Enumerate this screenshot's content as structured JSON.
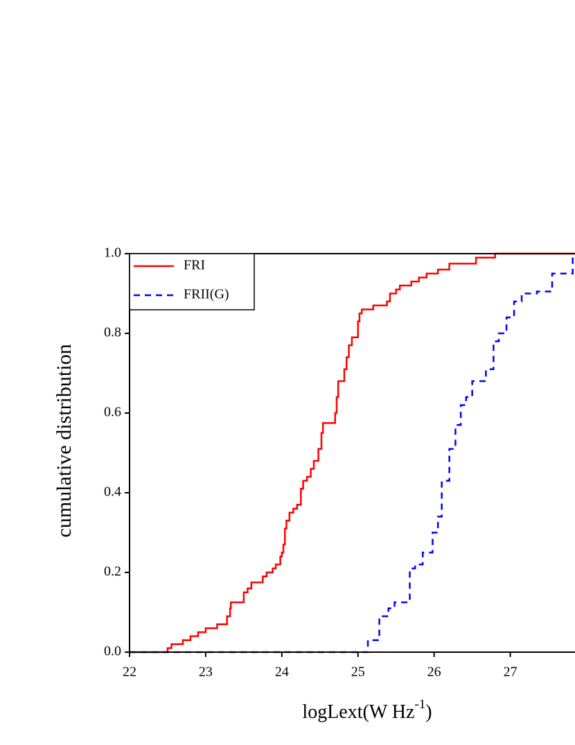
{
  "chart_data": {
    "type": "step",
    "ylabel": "cumulative distribution",
    "xlabel": [
      "logLext(W Hz",
      "-1",
      ")"
    ],
    "xlim": [
      22,
      27.85
    ],
    "ylim": [
      0,
      1
    ],
    "xticks": [
      22,
      23,
      24,
      25,
      26,
      27
    ],
    "yticks": [
      {
        "value": 0,
        "label": "0.0"
      },
      {
        "value": 0.2,
        "label": "0.2"
      },
      {
        "value": 0.4,
        "label": "0.4"
      },
      {
        "value": 0.6,
        "label": "0.6"
      },
      {
        "value": 0.8,
        "label": "0.8"
      },
      {
        "value": 1,
        "label": "1.0"
      }
    ],
    "legend": "upper left",
    "series": [
      {
        "name": "FRI",
        "color": "#ff0000",
        "dash": false,
        "x": [
          22,
          22.5,
          22.55,
          22.7,
          22.8,
          22.9,
          23.0,
          23.15,
          23.28,
          23.32,
          23.33,
          23.5,
          23.55,
          23.6,
          23.75,
          23.8,
          23.88,
          23.92,
          23.98,
          24.0,
          24.02,
          24.04,
          24.06,
          24.1,
          24.15,
          24.2,
          24.25,
          24.28,
          24.33,
          24.38,
          24.42,
          24.48,
          24.52,
          24.54,
          24.7,
          24.72,
          24.74,
          24.82,
          24.85,
          24.88,
          24.92,
          25.0,
          25.02,
          25.05,
          25.2,
          25.38,
          25.42,
          25.5,
          25.55,
          25.7,
          25.8,
          25.9,
          26.05,
          26.2,
          26.55,
          26.8,
          27.85
        ],
        "values": [
          0,
          0.01,
          0.02,
          0.03,
          0.04,
          0.05,
          0.06,
          0.07,
          0.09,
          0.11,
          0.125,
          0.15,
          0.16,
          0.175,
          0.19,
          0.2,
          0.21,
          0.22,
          0.24,
          0.25,
          0.27,
          0.31,
          0.33,
          0.35,
          0.36,
          0.37,
          0.41,
          0.43,
          0.44,
          0.46,
          0.48,
          0.51,
          0.55,
          0.575,
          0.6,
          0.64,
          0.68,
          0.71,
          0.74,
          0.77,
          0.79,
          0.83,
          0.85,
          0.86,
          0.87,
          0.88,
          0.9,
          0.91,
          0.92,
          0.93,
          0.94,
          0.95,
          0.96,
          0.975,
          0.99,
          1,
          1
        ]
      },
      {
        "name": "FRII(G)",
        "color": "#0000ff",
        "dash": true,
        "x": [
          22,
          25.13,
          25.28,
          25.4,
          25.48,
          25.68,
          25.75,
          25.85,
          25.98,
          26.05,
          26.1,
          26.2,
          26.28,
          26.35,
          26.42,
          26.5,
          26.68,
          26.78,
          26.85,
          26.95,
          27.05,
          27.15,
          27.35,
          27.55,
          27.82
        ],
        "values": [
          0,
          0.03,
          0.09,
          0.11,
          0.125,
          0.21,
          0.22,
          0.25,
          0.3,
          0.34,
          0.43,
          0.51,
          0.57,
          0.62,
          0.64,
          0.68,
          0.71,
          0.78,
          0.8,
          0.84,
          0.88,
          0.9,
          0.905,
          0.95,
          1
        ]
      }
    ]
  }
}
